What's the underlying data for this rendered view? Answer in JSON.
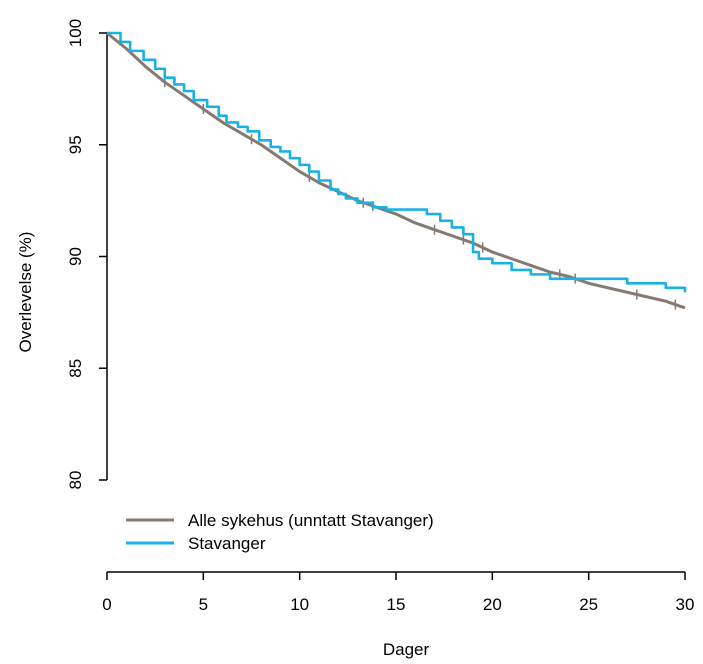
{
  "chart_data": {
    "type": "line",
    "title": "",
    "xlabel": "Dager",
    "ylabel": "Overlevelse (%)",
    "xlim": [
      0,
      30
    ],
    "ylim": [
      80,
      100
    ],
    "x_ticks": [
      0,
      5,
      10,
      15,
      20,
      25,
      30
    ],
    "y_ticks": [
      80,
      85,
      90,
      95,
      100
    ],
    "grid": false,
    "legend_placement": "bottom-left",
    "series": [
      {
        "name": "Alle sykehus (unntatt Stavanger)",
        "color": "#857a72",
        "style": "smooth",
        "x": [
          0,
          1,
          2,
          3,
          4,
          5,
          6,
          7,
          8,
          9,
          10,
          11,
          12,
          13,
          14,
          15,
          16,
          17,
          18,
          19,
          20,
          21,
          22,
          23,
          24,
          25,
          26,
          27,
          28,
          29,
          30
        ],
        "y": [
          100,
          99.3,
          98.5,
          97.8,
          97.2,
          96.6,
          96.0,
          95.5,
          95.0,
          94.4,
          93.8,
          93.3,
          92.9,
          92.5,
          92.2,
          91.9,
          91.5,
          91.2,
          90.9,
          90.6,
          90.2,
          89.9,
          89.6,
          89.3,
          89.1,
          88.8,
          88.6,
          88.4,
          88.2,
          88.0,
          87.7
        ],
        "censor_x": [
          3,
          5,
          7.5,
          10.5,
          13.3,
          13.8,
          17,
          18.5,
          19.5,
          23.5,
          24.3,
          27.5,
          29.5
        ]
      },
      {
        "name": "Stavanger",
        "color": "#1ab2e3",
        "style": "step",
        "x": [
          0,
          0.7,
          1.2,
          1.9,
          2.5,
          3.0,
          3.5,
          4.0,
          4.5,
          5.2,
          5.8,
          6.2,
          6.8,
          7.3,
          7.9,
          8.5,
          9.0,
          9.5,
          10.0,
          10.5,
          11.0,
          11.6,
          12.0,
          12.4,
          13.0,
          13.8,
          14.5,
          15.0,
          16.0,
          16.6,
          17.3,
          17.9,
          18.5,
          19.0,
          19.3,
          20.0,
          21.0,
          22.0,
          23.0,
          24.0,
          25.0,
          27.0,
          28.0,
          29.0,
          30.0
        ],
        "y": [
          100,
          99.6,
          99.2,
          98.8,
          98.4,
          98.0,
          97.7,
          97.4,
          97.0,
          96.7,
          96.3,
          96.0,
          95.8,
          95.6,
          95.2,
          94.9,
          94.7,
          94.4,
          94.1,
          93.8,
          93.4,
          93.0,
          92.8,
          92.6,
          92.4,
          92.2,
          92.1,
          92.1,
          92.1,
          91.9,
          91.6,
          91.3,
          91.0,
          90.2,
          89.9,
          89.7,
          89.4,
          89.2,
          89.0,
          89.0,
          89.0,
          88.8,
          88.8,
          88.6,
          88.4
        ]
      }
    ]
  }
}
